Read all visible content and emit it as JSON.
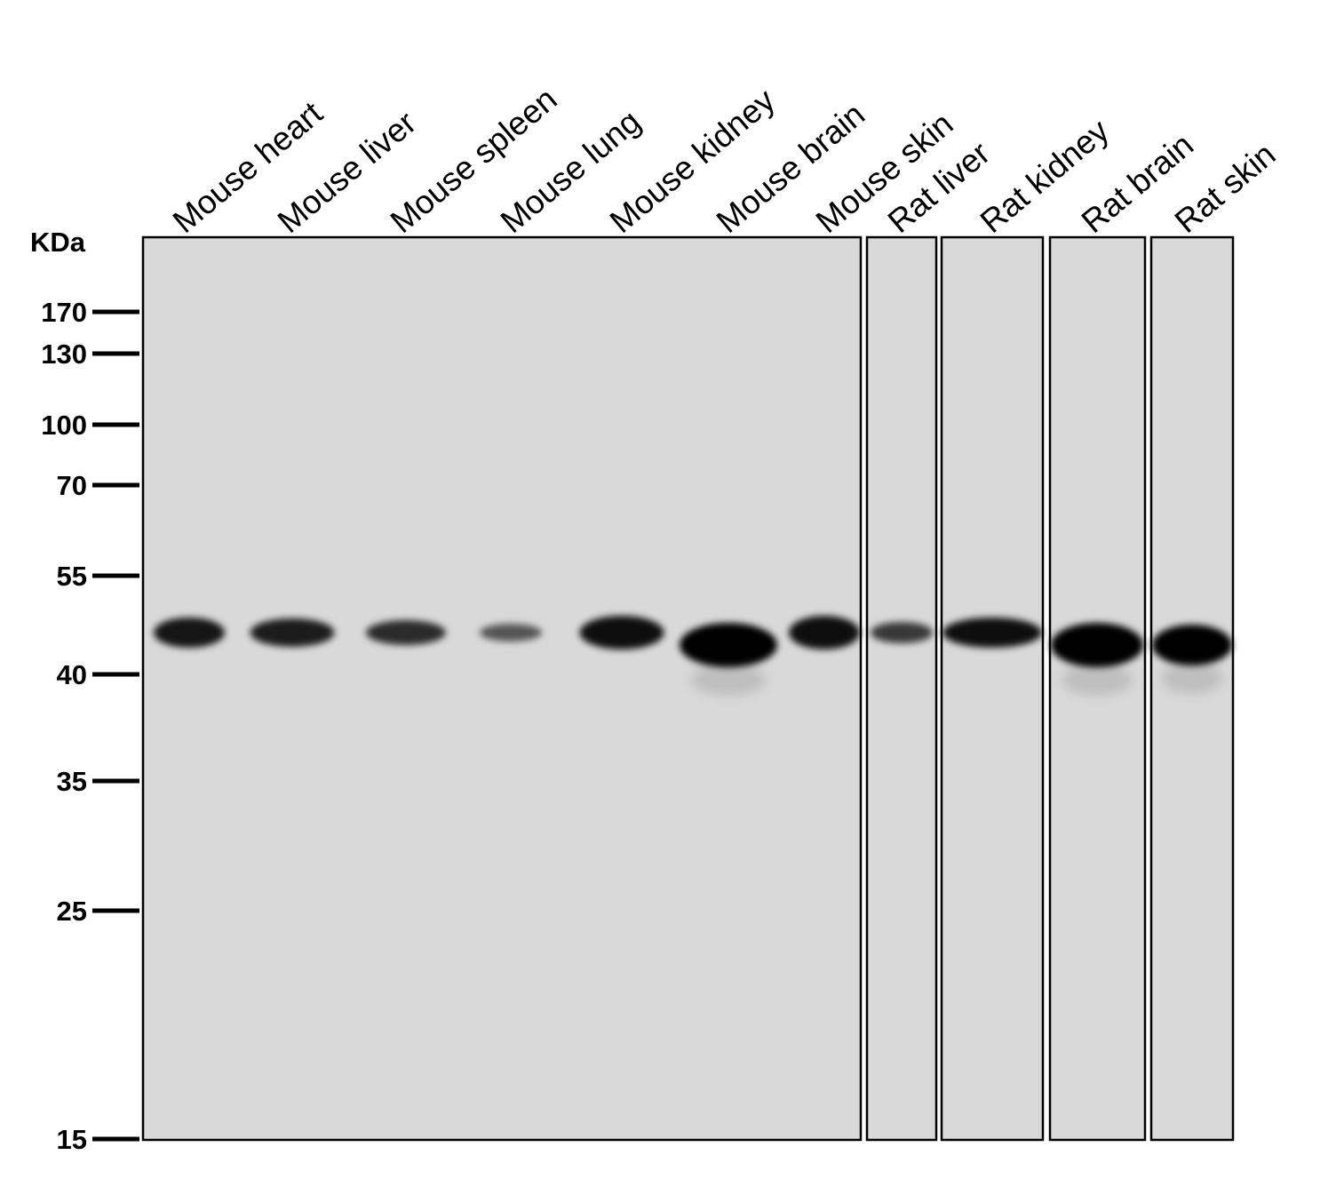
{
  "figure": {
    "unit_label": "KDa",
    "background_color": "#ffffff",
    "membrane_color": "#d9d9d9",
    "band_color": "#000000"
  },
  "lanes": [
    {
      "label": "Mouse heart",
      "band_intensity": 0.85,
      "band_thickness": 0.6
    },
    {
      "label": "Mouse liver",
      "band_intensity": 0.8,
      "band_thickness": 0.55
    },
    {
      "label": "Mouse spleen",
      "band_intensity": 0.7,
      "band_thickness": 0.45
    },
    {
      "label": "Mouse lung",
      "band_intensity": 0.4,
      "band_thickness": 0.25
    },
    {
      "label": "Mouse kidney",
      "band_intensity": 0.9,
      "band_thickness": 0.7
    },
    {
      "label": "Mouse brain",
      "band_intensity": 1.0,
      "band_thickness": 1.0
    },
    {
      "label": "Mouse skin",
      "band_intensity": 0.9,
      "band_thickness": 0.7
    },
    {
      "label": "Rat liver",
      "band_intensity": 0.6,
      "band_thickness": 0.35
    },
    {
      "label": "Rat kidney",
      "band_intensity": 0.9,
      "band_thickness": 0.6
    },
    {
      "label": "Rat brain",
      "band_intensity": 1.0,
      "band_thickness": 1.0
    },
    {
      "label": "Rat skin",
      "band_intensity": 1.0,
      "band_thickness": 0.9
    }
  ],
  "markers": [
    {
      "label": "170",
      "kda": 170
    },
    {
      "label": "130",
      "kda": 130
    },
    {
      "label": "100",
      "kda": 100
    },
    {
      "label": "70",
      "kda": 70
    },
    {
      "label": "55",
      "kda": 55
    },
    {
      "label": "40",
      "kda": 40
    },
    {
      "label": "35",
      "kda": 35
    },
    {
      "label": "25",
      "kda": 25
    },
    {
      "label": "15",
      "kda": 15
    }
  ],
  "panels": [
    {
      "lanes": [
        0,
        1,
        2,
        3,
        4,
        5,
        6
      ]
    },
    {
      "lanes": [
        7
      ]
    },
    {
      "lanes": [
        8
      ]
    },
    {
      "lanes": [
        9
      ]
    },
    {
      "lanes": [
        10
      ]
    }
  ]
}
